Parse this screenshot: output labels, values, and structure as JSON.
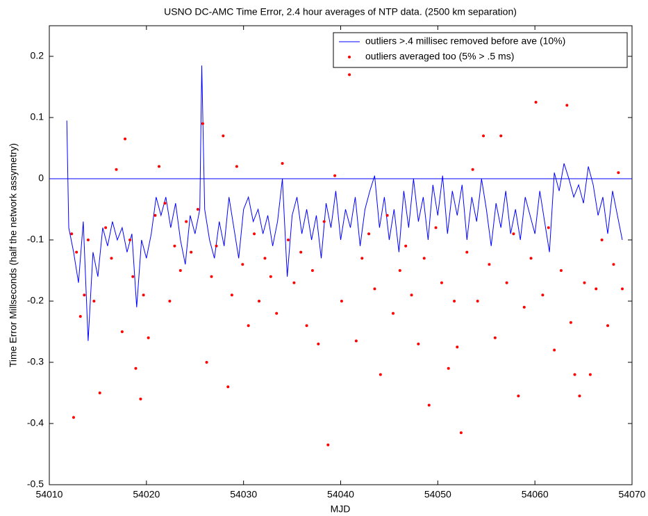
{
  "chart_data": {
    "type": "line_scatter",
    "title": "USNO DC-AMC Time Error, 2.4 hour averages of NTP data.  (2500 km separation)",
    "xlabel": "MJD",
    "ylabel": "Time Error Millseconds (half the network assymetry)",
    "xlim": [
      54010,
      54070
    ],
    "xticks": [
      54010,
      54020,
      54030,
      54040,
      54050,
      54060,
      54070
    ],
    "ylim": [
      -0.5,
      0.25
    ],
    "yticks": [
      -0.5,
      -0.4,
      -0.3,
      -0.2,
      -0.1,
      0,
      0.1,
      0.2
    ],
    "hlines": [
      0
    ],
    "hline_color": "#0000ff",
    "legend": "upper right",
    "series": [
      {
        "name": "outliers >.4 millisec removed before ave (10%)",
        "type": "line",
        "color": "#0000ff",
        "x": [
          54011.8,
          54012,
          54012.5,
          54013,
          54013.5,
          54014,
          54014.5,
          54015,
          54015.5,
          54016,
          54016.5,
          54017,
          54017.5,
          54018,
          54018.5,
          54019,
          54019.5,
          54020,
          54020.5,
          54021,
          54021.5,
          54022,
          54022.5,
          54023,
          54023.5,
          54024,
          54024.5,
          54025,
          54025.5,
          54025.7,
          54026,
          54026.5,
          54027,
          54027.5,
          54028,
          54028.5,
          54029,
          54029.5,
          54030,
          54030.5,
          54031,
          54031.5,
          54032,
          54032.5,
          54033,
          54033.5,
          54034,
          54034.5,
          54035,
          54035.5,
          54036,
          54036.5,
          54037,
          54037.5,
          54038,
          54038.5,
          54039,
          54039.5,
          54040,
          54040.5,
          54041,
          54041.5,
          54042,
          54042.5,
          54043,
          54043.5,
          54044,
          54044.5,
          54045,
          54045.5,
          54046,
          54046.5,
          54047,
          54047.5,
          54048,
          54048.5,
          54049,
          54049.5,
          54050,
          54050.5,
          54051,
          54051.5,
          54052,
          54052.5,
          54053,
          54053.5,
          54054,
          54054.5,
          54055,
          54055.5,
          54056,
          54056.5,
          54057,
          54057.5,
          54058,
          54058.5,
          54059,
          54059.5,
          54060,
          54060.5,
          54061,
          54061.5,
          54062,
          54062.5,
          54063,
          54063.5,
          54064,
          54064.5,
          54065,
          54065.5,
          54066,
          54066.5,
          54067,
          54067.5,
          54068,
          54068.5,
          54069
        ],
        "values": [
          0.095,
          -0.08,
          -0.12,
          -0.17,
          -0.07,
          -0.265,
          -0.12,
          -0.16,
          -0.08,
          -0.11,
          -0.07,
          -0.1,
          -0.08,
          -0.12,
          -0.09,
          -0.21,
          -0.1,
          -0.13,
          -0.09,
          -0.03,
          -0.06,
          -0.03,
          -0.08,
          -0.04,
          -0.1,
          -0.14,
          -0.06,
          -0.09,
          -0.05,
          0.185,
          -0.05,
          -0.1,
          -0.13,
          -0.07,
          -0.11,
          -0.03,
          -0.08,
          -0.13,
          -0.05,
          -0.03,
          -0.07,
          -0.05,
          -0.09,
          -0.06,
          -0.11,
          -0.07,
          0.0,
          -0.16,
          -0.06,
          -0.03,
          -0.09,
          -0.05,
          -0.1,
          -0.06,
          -0.13,
          -0.04,
          -0.08,
          -0.02,
          -0.1,
          -0.05,
          -0.08,
          -0.03,
          -0.11,
          -0.05,
          -0.02,
          0.005,
          -0.08,
          -0.03,
          -0.1,
          -0.05,
          -0.12,
          -0.02,
          -0.08,
          0.0,
          -0.07,
          -0.03,
          -0.1,
          -0.01,
          -0.06,
          0.005,
          -0.09,
          -0.02,
          -0.06,
          -0.01,
          -0.1,
          -0.03,
          -0.07,
          0.0,
          -0.05,
          -0.11,
          -0.04,
          -0.08,
          -0.02,
          -0.09,
          -0.05,
          -0.1,
          -0.03,
          -0.06,
          -0.09,
          -0.02,
          -0.07,
          -0.12,
          0.01,
          -0.02,
          0.025,
          0.0,
          -0.03,
          -0.01,
          -0.04,
          0.02,
          -0.01,
          -0.06,
          -0.03,
          -0.09,
          -0.02,
          -0.06,
          -0.1
        ]
      },
      {
        "name": "outliers averaged too (5% > .5 ms)",
        "type": "scatter",
        "color": "#ff0000",
        "x": [
          54012.3,
          54012.5,
          54012.8,
          54013.2,
          54013.6,
          54014.0,
          54014.6,
          54015.2,
          54015.8,
          54016.4,
          54016.9,
          54017.5,
          54017.8,
          54018.3,
          54018.6,
          54018.9,
          54019.4,
          54019.7,
          54020.2,
          54020.9,
          54021.3,
          54021.9,
          54022.4,
          54022.9,
          54023.5,
          54024.1,
          54024.6,
          54025.3,
          54025.8,
          54026.2,
          54026.7,
          54027.2,
          54027.9,
          54028.4,
          54028.8,
          54029.3,
          54029.9,
          54030.5,
          54031.1,
          54031.6,
          54032.2,
          54032.8,
          54033.4,
          54034.0,
          54034.6,
          54035.2,
          54035.9,
          54036.5,
          54037.1,
          54037.7,
          54038.3,
          54038.7,
          54039.4,
          54040.1,
          54040.9,
          54041.6,
          54042.2,
          54042.9,
          54043.5,
          54044.1,
          54044.8,
          54045.4,
          54046.1,
          54046.7,
          54047.3,
          54048.0,
          54048.6,
          54049.1,
          54049.8,
          54050.4,
          54051.1,
          54051.7,
          54052.0,
          54052.4,
          54053.0,
          54053.6,
          54054.1,
          54054.7,
          54055.3,
          54055.9,
          54056.5,
          54057.1,
          54057.8,
          54058.3,
          54058.9,
          54059.6,
          54060.1,
          54060.8,
          54061.4,
          54062.0,
          54062.7,
          54063.3,
          54063.7,
          54064.1,
          54064.6,
          54065.1,
          54065.7,
          54066.3,
          54066.9,
          54067.5,
          54068.1,
          54068.6,
          54069.0
        ],
        "values": [
          -0.09,
          -0.39,
          -0.12,
          -0.225,
          -0.19,
          -0.1,
          -0.2,
          -0.35,
          -0.08,
          -0.13,
          0.015,
          -0.25,
          0.065,
          -0.1,
          -0.16,
          -0.31,
          -0.36,
          -0.19,
          -0.26,
          -0.06,
          0.02,
          -0.04,
          -0.2,
          -0.11,
          -0.15,
          -0.07,
          -0.12,
          -0.05,
          0.09,
          -0.3,
          -0.16,
          -0.11,
          0.07,
          -0.34,
          -0.19,
          0.02,
          -0.14,
          -0.24,
          -0.09,
          -0.2,
          -0.13,
          -0.16,
          -0.22,
          0.025,
          -0.1,
          -0.17,
          -0.12,
          -0.24,
          -0.15,
          -0.27,
          -0.07,
          -0.435,
          0.005,
          -0.2,
          0.17,
          -0.265,
          -0.13,
          -0.09,
          -0.18,
          -0.32,
          -0.06,
          -0.22,
          -0.15,
          -0.11,
          -0.19,
          -0.27,
          -0.13,
          -0.37,
          -0.08,
          -0.17,
          -0.31,
          -0.2,
          -0.275,
          -0.415,
          -0.12,
          0.015,
          -0.2,
          0.07,
          -0.14,
          -0.26,
          0.07,
          -0.17,
          -0.09,
          -0.355,
          -0.21,
          -0.13,
          0.125,
          -0.19,
          -0.08,
          -0.28,
          -0.15,
          0.12,
          -0.235,
          -0.32,
          -0.355,
          -0.17,
          -0.32,
          -0.18,
          -0.1,
          -0.24,
          -0.14,
          0.01,
          -0.18
        ]
      }
    ]
  }
}
